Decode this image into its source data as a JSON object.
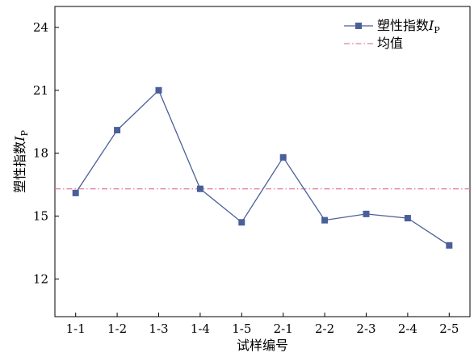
{
  "chart_data": {
    "type": "line",
    "categories": [
      "1-1",
      "1-2",
      "1-3",
      "1-4",
      "1-5",
      "2-1",
      "2-2",
      "2-3",
      "2-4",
      "2-5"
    ],
    "series": [
      {
        "name": "塑性指数",
        "name_symbol": "I",
        "name_subscript": "P",
        "values": [
          16.1,
          19.1,
          21.0,
          16.3,
          14.7,
          17.8,
          14.8,
          15.1,
          14.9,
          13.6
        ],
        "color": "#4a5f9a",
        "marker": "square"
      }
    ],
    "reference_lines": [
      {
        "name": "均值",
        "value": 16.3,
        "color": "#e07fa8",
        "style": "dash-dot"
      }
    ],
    "xlabel": "试样编号",
    "ylabel": "塑性指数",
    "ylabel_symbol": "I",
    "ylabel_subscript": "P",
    "ylim": [
      10.2,
      25
    ],
    "yticks": [
      12,
      15,
      18,
      21,
      24
    ],
    "grid": false,
    "legend": "top-right"
  }
}
